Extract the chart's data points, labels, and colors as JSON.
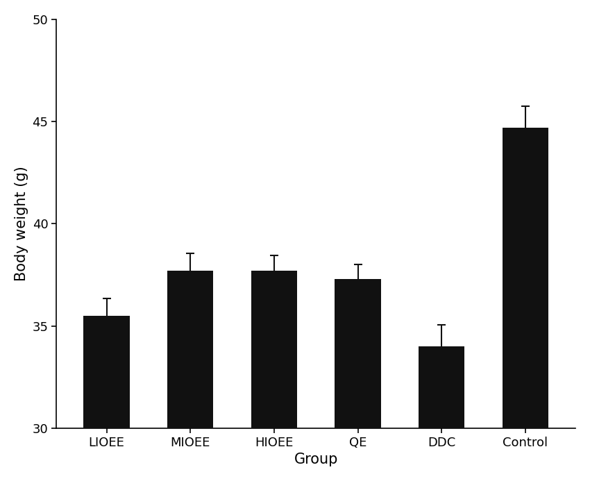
{
  "categories": [
    "LIOEE",
    "MIOEE",
    "HIOEE",
    "QE",
    "DDC",
    "Control"
  ],
  "values": [
    35.5,
    37.7,
    37.7,
    37.3,
    34.0,
    44.7
  ],
  "errors": [
    0.85,
    0.85,
    0.75,
    0.72,
    1.05,
    1.05
  ],
  "bar_color": "#111111",
  "bar_width": 0.55,
  "xlabel": "Group",
  "ylabel": "Body weight (g)",
  "ylim": [
    30,
    50
  ],
  "yticks": [
    30,
    35,
    40,
    45,
    50
  ],
  "figsize": [
    8.5,
    6.93
  ],
  "dpi": 100,
  "xlabel_fontsize": 15,
  "ylabel_fontsize": 15,
  "tick_fontsize": 13,
  "error_capsize": 4,
  "error_linewidth": 1.5,
  "error_color": "#111111",
  "spine_linewidth": 1.2
}
